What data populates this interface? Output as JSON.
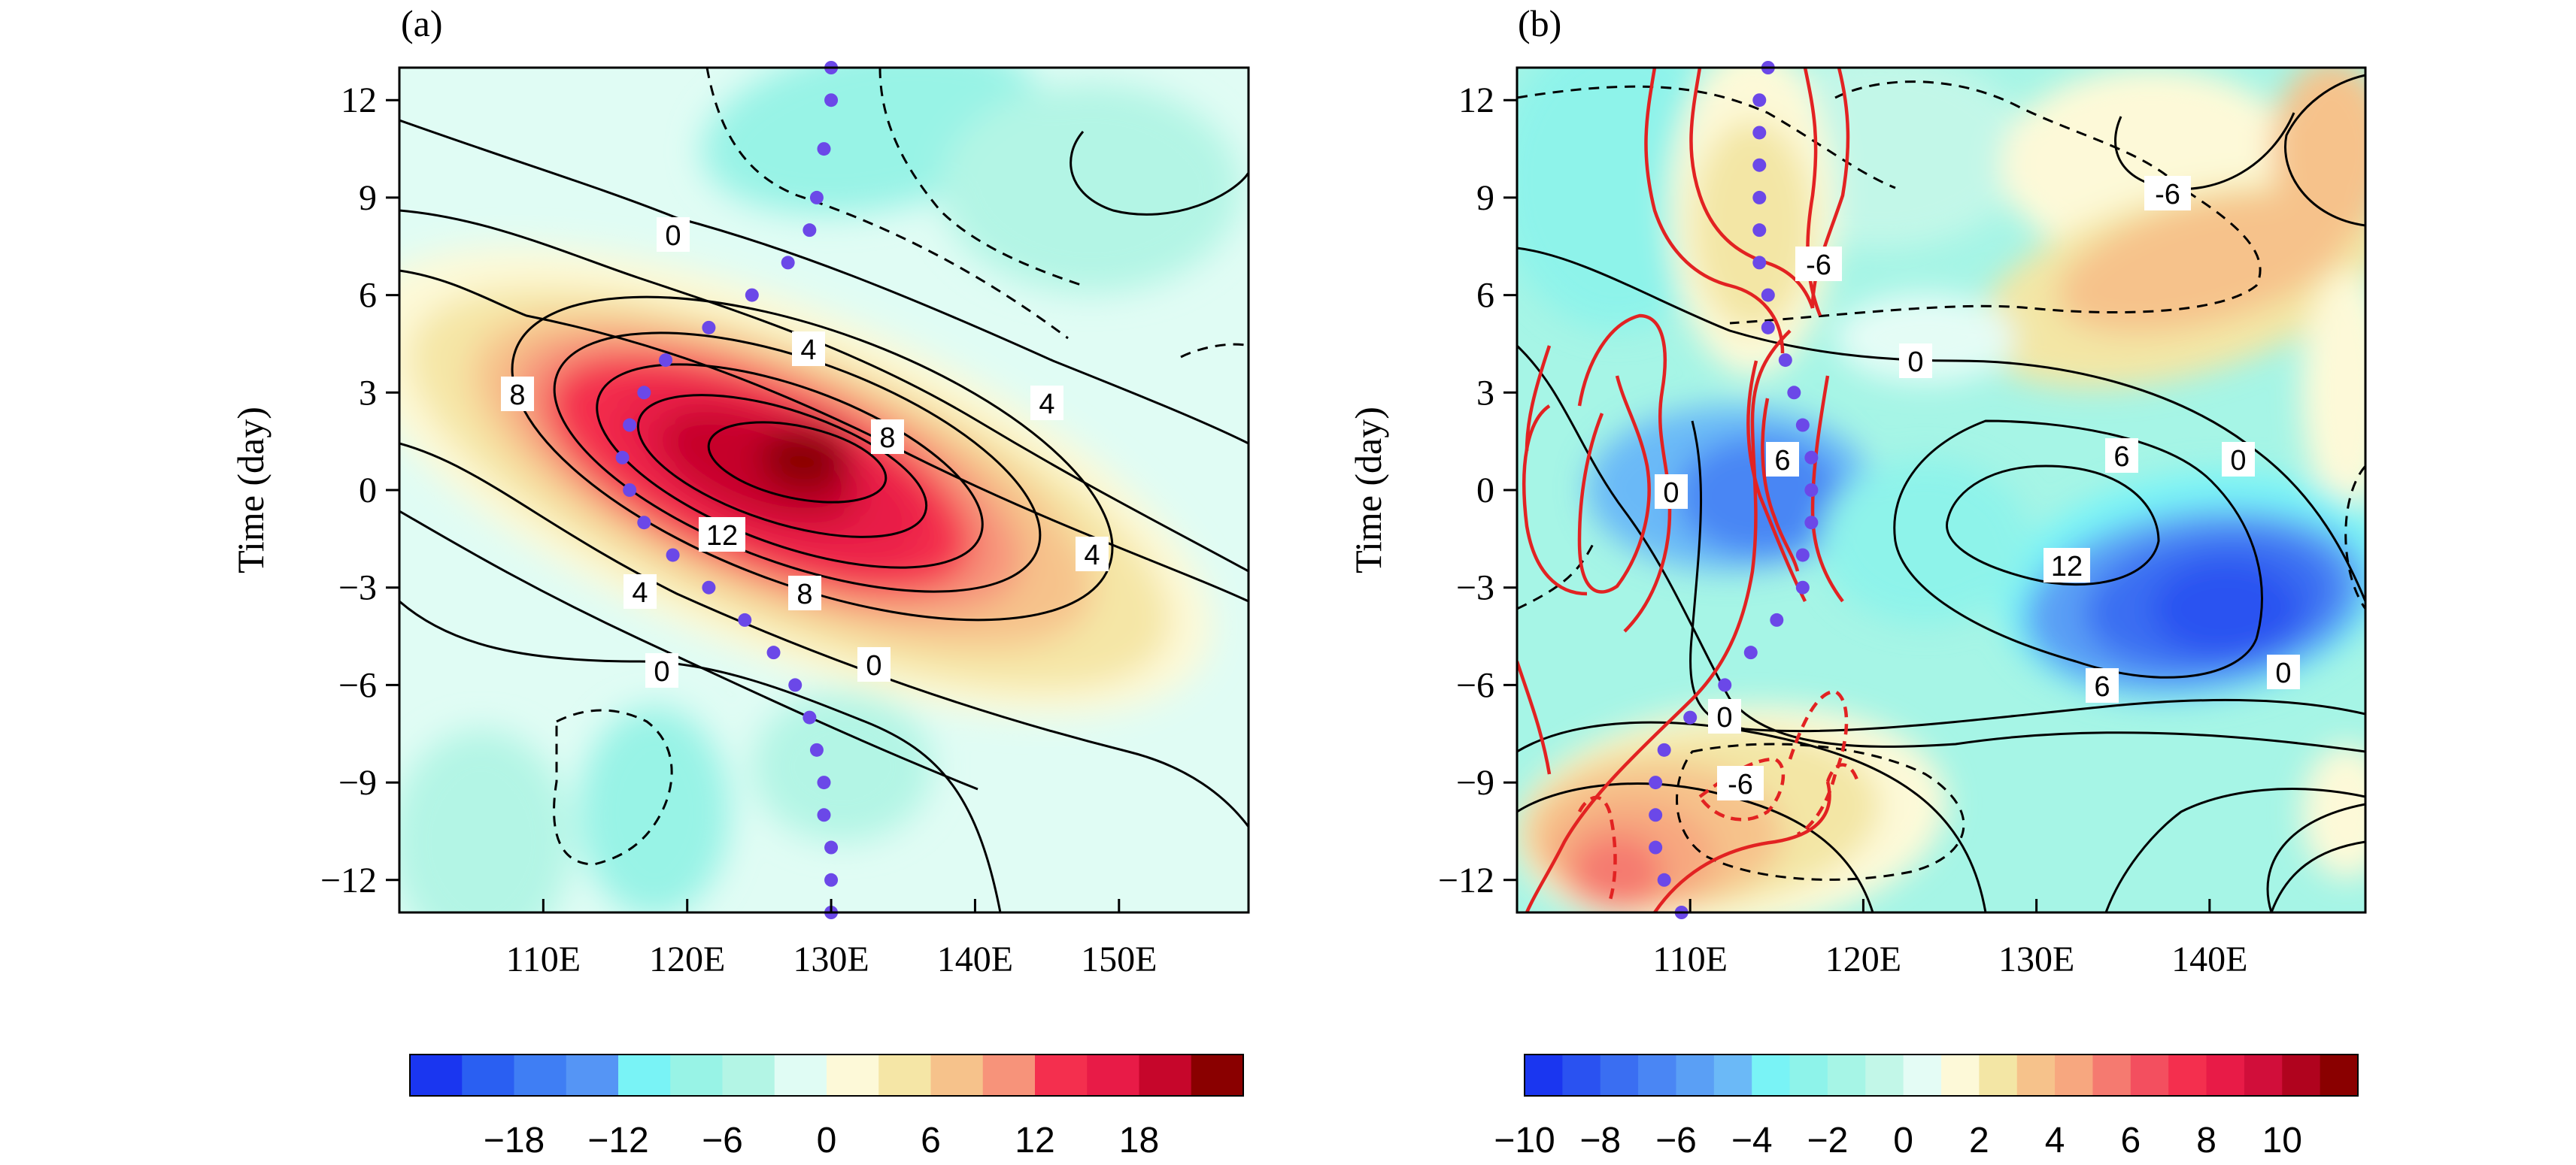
{
  "figure": {
    "colorbar_colors_a": [
      "#1a36f0",
      "#2a5ff2",
      "#3f7ef4",
      "#5595f5",
      "#79f3f6",
      "#98f3e6",
      "#b3f5e5",
      "#e0fcf4",
      "#fdf9d8",
      "#f5e6a6",
      "#f6c28b",
      "#f7937a",
      "#f42f4e",
      "#e81b47",
      "#c6062b",
      "#8a0000"
    ],
    "colorbar_colors_b": [
      "#1a36f0",
      "#2a52f1",
      "#3a6ef2",
      "#4a86f4",
      "#5a9ff5",
      "#6bb9f7",
      "#79f3f6",
      "#8ef3ea",
      "#a6f5e6",
      "#c2f7e8",
      "#e4fcf5",
      "#fdf9d8",
      "#f3e6a5",
      "#f6c28b",
      "#f7a77f",
      "#f57a70",
      "#f34f5f",
      "#f42f4e",
      "#e81b47",
      "#d10e3a",
      "#b0031e",
      "#8a0000"
    ]
  },
  "chart_data": [
    {
      "panel": "(a)",
      "type": "heatmap",
      "title": "",
      "xlabel": "",
      "ylabel": "Time (day)",
      "xlim": [
        100,
        159
      ],
      "ylim": [
        -13,
        13
      ],
      "xticks": [
        110,
        120,
        130,
        140,
        150
      ],
      "xtick_labels": [
        "110E",
        "120E",
        "130E",
        "140E",
        "150E"
      ],
      "yticks": [
        12,
        9,
        6,
        3,
        0,
        -3,
        -6,
        -9,
        -12
      ],
      "ytick_labels": [
        "12",
        "9",
        "6",
        "3",
        "0",
        "−3",
        "−6",
        "−9",
        "−12"
      ],
      "colorbar_ticks": [
        "−18",
        "−12",
        "−6",
        "0",
        "6",
        "12",
        "18"
      ],
      "contour_labels": [
        "0",
        "4",
        "8",
        "8",
        "12",
        "4",
        "8",
        "4",
        "4",
        "0",
        "0"
      ],
      "blue_dots": [
        {
          "lon": 130.0,
          "t": 13.0
        },
        {
          "lon": 130.0,
          "t": 12.0
        },
        {
          "lon": 129.5,
          "t": 10.5
        },
        {
          "lon": 129.0,
          "t": 9.0
        },
        {
          "lon": 128.5,
          "t": 8.0
        },
        {
          "lon": 127.0,
          "t": 7.0
        },
        {
          "lon": 124.5,
          "t": 6.0
        },
        {
          "lon": 121.5,
          "t": 5.0
        },
        {
          "lon": 118.5,
          "t": 4.0
        },
        {
          "lon": 117.0,
          "t": 3.0
        },
        {
          "lon": 116.0,
          "t": 2.0
        },
        {
          "lon": 115.5,
          "t": 1.0
        },
        {
          "lon": 116.0,
          "t": 0.0
        },
        {
          "lon": 117.0,
          "t": -1.0
        },
        {
          "lon": 119.0,
          "t": -2.0
        },
        {
          "lon": 121.5,
          "t": -3.0
        },
        {
          "lon": 124.0,
          "t": -4.0
        },
        {
          "lon": 126.0,
          "t": -5.0
        },
        {
          "lon": 127.5,
          "t": -6.0
        },
        {
          "lon": 128.5,
          "t": -7.0
        },
        {
          "lon": 129.0,
          "t": -8.0
        },
        {
          "lon": 129.5,
          "t": -9.0
        },
        {
          "lon": 129.5,
          "t": -10.0
        },
        {
          "lon": 130.0,
          "t": -11.0
        },
        {
          "lon": 130.0,
          "t": -12.0
        },
        {
          "lon": 130.0,
          "t": -13.0
        }
      ]
    },
    {
      "panel": "(b)",
      "type": "heatmap",
      "title": "",
      "xlabel": "",
      "ylabel": "Time (day)",
      "xlim": [
        100,
        149
      ],
      "ylim": [
        -13,
        13
      ],
      "xticks": [
        110,
        120,
        130,
        140
      ],
      "xtick_labels": [
        "110E",
        "120E",
        "130E",
        "140E"
      ],
      "yticks": [
        12,
        9,
        6,
        3,
        0,
        -3,
        -6,
        -9,
        -12
      ],
      "ytick_labels": [
        "12",
        "9",
        "6",
        "3",
        "0",
        "−3",
        "−6",
        "−9",
        "−12"
      ],
      "colorbar_ticks": [
        "−10",
        "−8",
        "−6",
        "−4",
        "−2",
        "0",
        "2",
        "4",
        "6",
        "8",
        "10"
      ],
      "contour_labels": [
        "-6",
        "-6",
        "0",
        "6",
        "0",
        "0",
        "6",
        "12",
        "6",
        "0",
        "0",
        "-6"
      ],
      "blue_dots": [
        {
          "lon": 114.5,
          "t": 13.0
        },
        {
          "lon": 114.0,
          "t": 12.0
        },
        {
          "lon": 114.0,
          "t": 11.0
        },
        {
          "lon": 114.0,
          "t": 10.0
        },
        {
          "lon": 114.0,
          "t": 9.0
        },
        {
          "lon": 114.0,
          "t": 8.0
        },
        {
          "lon": 114.0,
          "t": 7.0
        },
        {
          "lon": 114.5,
          "t": 6.0
        },
        {
          "lon": 114.5,
          "t": 5.0
        },
        {
          "lon": 115.5,
          "t": 4.0
        },
        {
          "lon": 116.0,
          "t": 3.0
        },
        {
          "lon": 116.5,
          "t": 2.0
        },
        {
          "lon": 117.0,
          "t": 1.0
        },
        {
          "lon": 117.0,
          "t": 0.0
        },
        {
          "lon": 117.0,
          "t": -1.0
        },
        {
          "lon": 116.5,
          "t": -2.0
        },
        {
          "lon": 116.5,
          "t": -3.0
        },
        {
          "lon": 115.0,
          "t": -4.0
        },
        {
          "lon": 113.5,
          "t": -5.0
        },
        {
          "lon": 112.0,
          "t": -6.0
        },
        {
          "lon": 110.0,
          "t": -7.0
        },
        {
          "lon": 108.5,
          "t": -8.0
        },
        {
          "lon": 108.0,
          "t": -9.0
        },
        {
          "lon": 108.0,
          "t": -10.0
        },
        {
          "lon": 108.0,
          "t": -11.0
        },
        {
          "lon": 108.5,
          "t": -12.0
        },
        {
          "lon": 109.5,
          "t": -13.0
        }
      ]
    }
  ]
}
